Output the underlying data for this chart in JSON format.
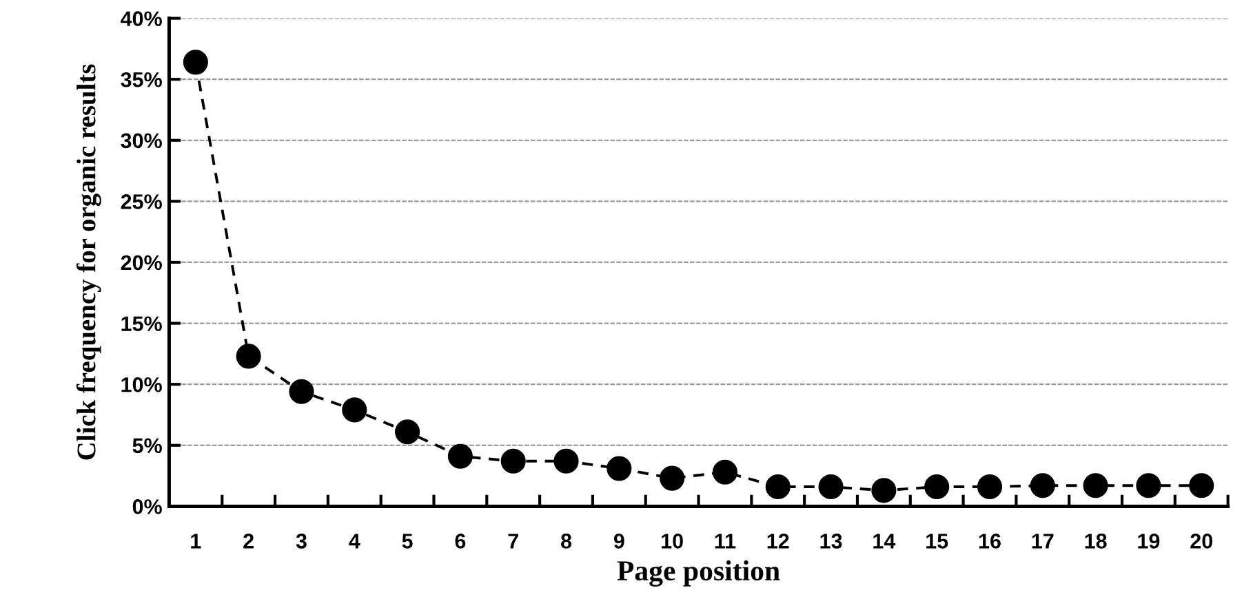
{
  "chart_data": {
    "type": "line",
    "xlabel": "Page position",
    "ylabel": "Click frequency for organic results",
    "categories": [
      "1",
      "2",
      "3",
      "4",
      "5",
      "6",
      "7",
      "8",
      "9",
      "10",
      "11",
      "12",
      "13",
      "14",
      "15",
      "16",
      "17",
      "18",
      "19",
      "20"
    ],
    "series": [
      {
        "color": "#000000",
        "values": [
          36.4,
          12.3,
          9.4,
          7.9,
          6.1,
          4.1,
          3.7,
          3.7,
          3.1,
          2.3,
          2.8,
          1.6,
          1.6,
          1.3,
          1.6,
          1.6,
          1.7,
          1.7,
          1.7,
          1.7
        ]
      }
    ],
    "ylim": [
      0,
      40
    ],
    "yticks": [
      {
        "value": 0,
        "label": "0%"
      },
      {
        "value": 5,
        "label": "5%"
      },
      {
        "value": 10,
        "label": "10%"
      },
      {
        "value": 15,
        "label": "15%"
      },
      {
        "value": 20,
        "label": "20%"
      },
      {
        "value": 25,
        "label": "25%"
      },
      {
        "value": 30,
        "label": "30%"
      },
      {
        "value": 35,
        "label": "35%"
      },
      {
        "value": 40,
        "label": "40%"
      }
    ],
    "grid": "y",
    "marker": "circle",
    "line_style": "dashed"
  }
}
